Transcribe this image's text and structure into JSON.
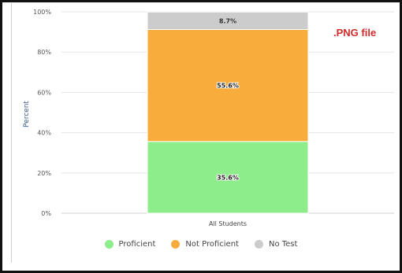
{
  "watermark": ".PNG file",
  "chart_data": {
    "type": "bar",
    "stacked": true,
    "categories": [
      "All Students"
    ],
    "series": [
      {
        "name": "Proficient",
        "values": [
          35.6
        ],
        "label": "35.6%",
        "color": "#8ded8a"
      },
      {
        "name": "Not Proficient",
        "values": [
          55.6
        ],
        "label": "55.6%",
        "color": "#f8ac3c"
      },
      {
        "name": "No Test",
        "values": [
          8.7
        ],
        "label": "8.7%",
        "color": "#cccccc"
      }
    ],
    "ylabel": "Percent",
    "ylim": [
      0,
      100
    ],
    "yticks": [
      0,
      20,
      40,
      60,
      80,
      100
    ],
    "yticklabels": [
      "0%",
      "20%",
      "40%",
      "60%",
      "80%",
      "100%"
    ],
    "grid": true,
    "legend_position": "bottom"
  }
}
